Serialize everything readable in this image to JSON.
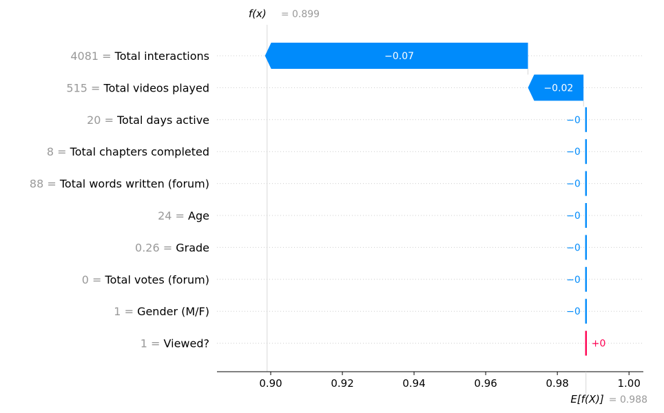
{
  "chart_data": {
    "type": "waterfall",
    "fx": {
      "label": "f(x)",
      "value_text": "= 0.899",
      "value": 0.899
    },
    "base": {
      "label": "E[f(X)]",
      "value_text": "= 0.988",
      "value": 0.988
    },
    "xlim": [
      0.885,
      1.004
    ],
    "xticks": [
      0.9,
      0.92,
      0.94,
      0.96,
      0.98,
      1.0
    ],
    "xtick_labels": [
      "0.90",
      "0.92",
      "0.94",
      "0.96",
      "0.98",
      "1.00"
    ],
    "features": [
      {
        "name": "Total interactions",
        "value": "4081",
        "contribution": -0.0734,
        "label": "−0.07"
      },
      {
        "name": "Total videos played",
        "value": "515",
        "contribution": -0.0155,
        "label": "−0.02"
      },
      {
        "name": "Total days active",
        "value": "20",
        "contribution": -0.0002,
        "label": "−0"
      },
      {
        "name": "Total chapters completed",
        "value": "8",
        "contribution": -0.0001,
        "label": "−0"
      },
      {
        "name": "Total words written (forum)",
        "value": "88",
        "contribution": -0.0001,
        "label": "−0"
      },
      {
        "name": "Age",
        "value": "24",
        "contribution": -0.0001,
        "label": "−0"
      },
      {
        "name": "Grade",
        "value": "0.26",
        "contribution": -0.0001,
        "label": "−0"
      },
      {
        "name": "Total votes (forum)",
        "value": "0",
        "contribution": -0.0001,
        "label": "−0"
      },
      {
        "name": "Gender (M/F)",
        "value": "1",
        "contribution": -0.0001,
        "label": "−0"
      },
      {
        "name": "Viewed?",
        "value": "1",
        "contribution": 0.0001,
        "label": "+0"
      }
    ],
    "colors": {
      "negative": "#008bfb",
      "positive": "#ff0051",
      "axis": "#000000",
      "grid": "#cccccc",
      "muted": "#999999"
    }
  }
}
